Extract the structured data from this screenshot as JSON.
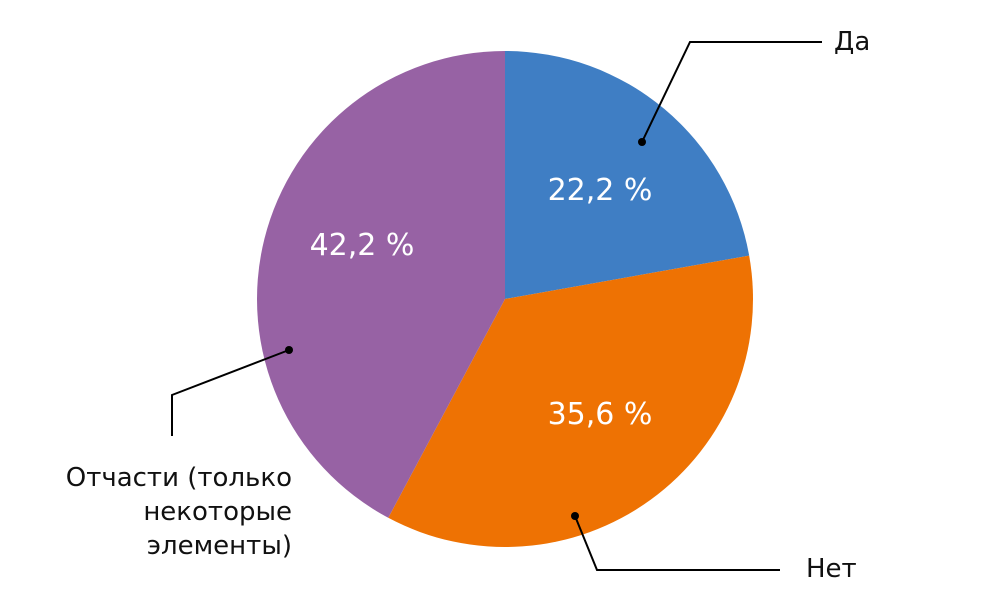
{
  "chart_data": {
    "type": "pie",
    "title": "",
    "slices": [
      {
        "label": "Да",
        "value": 22.2,
        "display": "22,2 %",
        "color": "#3f7ec4"
      },
      {
        "label": "Нет",
        "value": 35.6,
        "display": "35,6 %",
        "color": "#ee7203"
      },
      {
        "label": "Отчасти (только некоторые элементы)",
        "label_lines": [
          "Отчасти (только",
          "некоторые",
          "элементы)"
        ],
        "value": 42.2,
        "display": "42,2 %",
        "color": "#9762a4"
      }
    ],
    "start_angle": "12 o'clock",
    "direction": "clockwise",
    "legend": "none (leader-line labels)"
  }
}
